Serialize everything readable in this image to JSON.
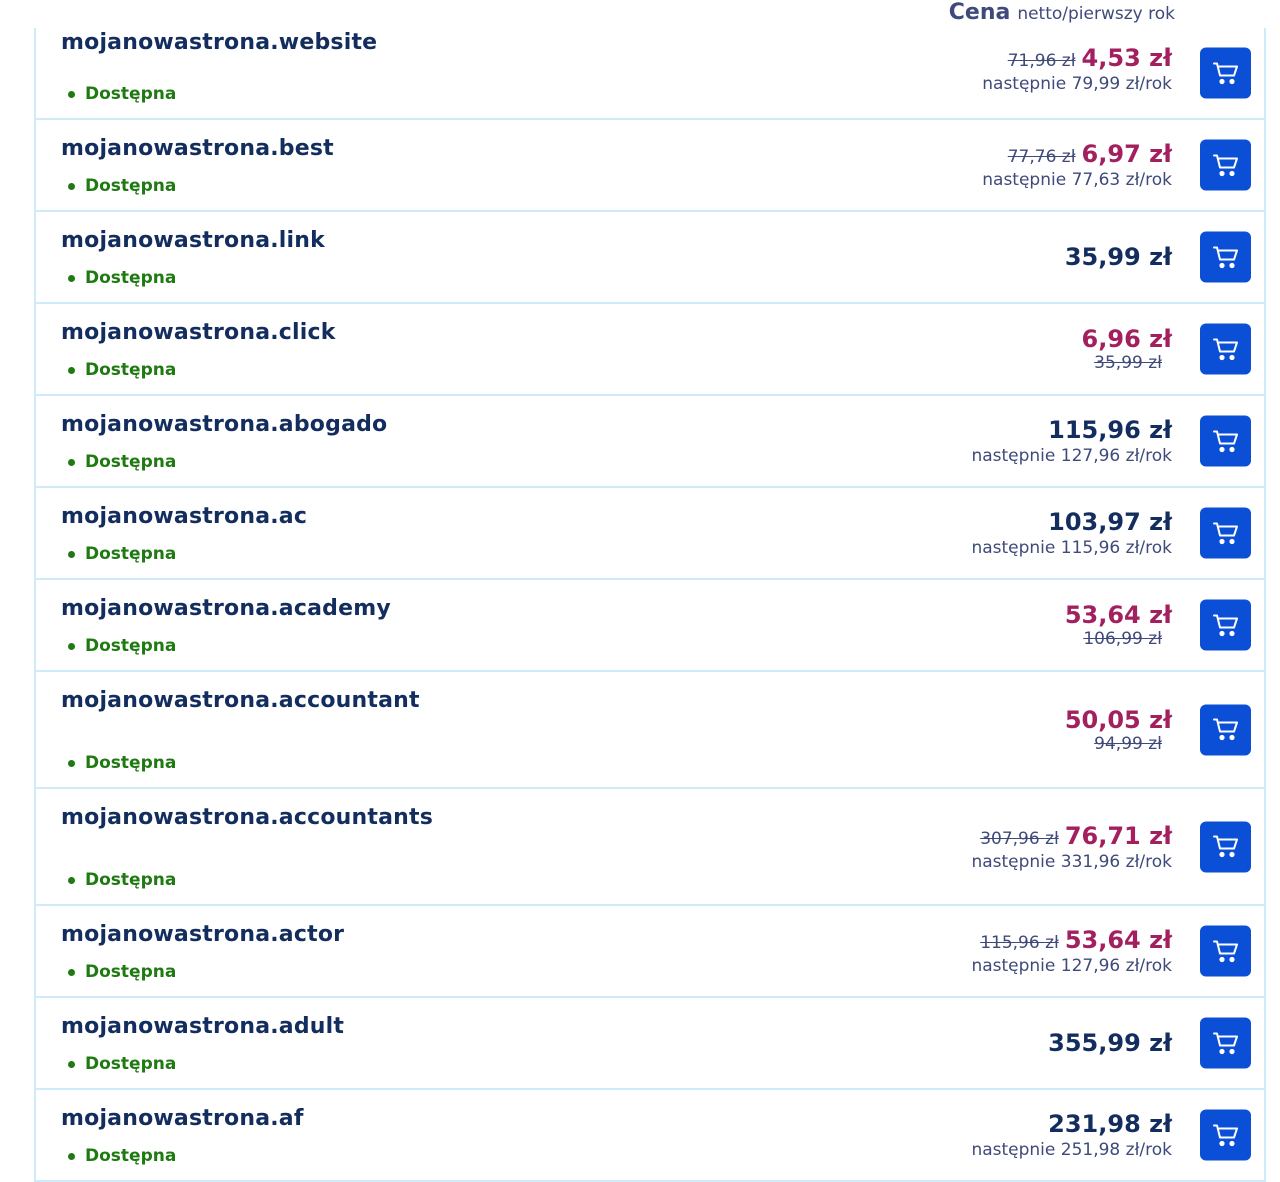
{
  "header": {
    "title": "Cena",
    "subtitle": "netto/pierwszy rok"
  },
  "colors": {
    "accent": "#0a4fd6",
    "promo": "#a3205f",
    "available": "#1f7a12",
    "text": "#132d5e"
  },
  "domains": [
    {
      "name": "mojanowastrona.website",
      "status": "Dostępna",
      "type": "promo_inline",
      "old": "71,96 zł",
      "price": "4,53 zł",
      "next": "następnie 79,99 zł/rok"
    },
    {
      "name": "mojanowastrona.best",
      "status": "Dostępna",
      "type": "promo_inline",
      "old": "77,76 zł",
      "price": "6,97 zł",
      "next": "następnie 77,63 zł/rok"
    },
    {
      "name": "mojanowastrona.link",
      "status": "Dostępna",
      "type": "regular",
      "price": "35,99 zł"
    },
    {
      "name": "mojanowastrona.click",
      "status": "Dostępna",
      "type": "promo_stacked",
      "price": "6,96 zł",
      "old": "35,99 zł"
    },
    {
      "name": "mojanowastrona.abogado",
      "status": "Dostępna",
      "type": "regular",
      "price": "115,96 zł",
      "next": "następnie 127,96 zł/rok"
    },
    {
      "name": "mojanowastrona.ac",
      "status": "Dostępna",
      "type": "regular",
      "price": "103,97 zł",
      "next": "następnie 115,96 zł/rok"
    },
    {
      "name": "mojanowastrona.academy",
      "status": "Dostępna",
      "type": "promo_stacked",
      "price": "53,64 zł",
      "old": "106,99 zł"
    },
    {
      "name": "mojanowastrona.accountant",
      "status": "Dostępna",
      "type": "promo_stacked",
      "price": "50,05 zł",
      "old": "94,99 zł",
      "tall": true
    },
    {
      "name": "mojanowastrona.accountants",
      "status": "Dostępna",
      "type": "promo_inline",
      "old": "307,96 zł",
      "price": "76,71 zł",
      "next": "następnie 331,96 zł/rok",
      "tall": true
    },
    {
      "name": "mojanowastrona.actor",
      "status": "Dostępna",
      "type": "promo_inline",
      "old": "115,96 zł",
      "price": "53,64 zł",
      "next": "następnie 127,96 zł/rok"
    },
    {
      "name": "mojanowastrona.adult",
      "status": "Dostępna",
      "type": "regular",
      "price": "355,99 zł"
    },
    {
      "name": "mojanowastrona.af",
      "status": "Dostępna",
      "type": "regular",
      "price": "231,98 zł",
      "next": "następnie 251,98 zł/rok"
    }
  ]
}
